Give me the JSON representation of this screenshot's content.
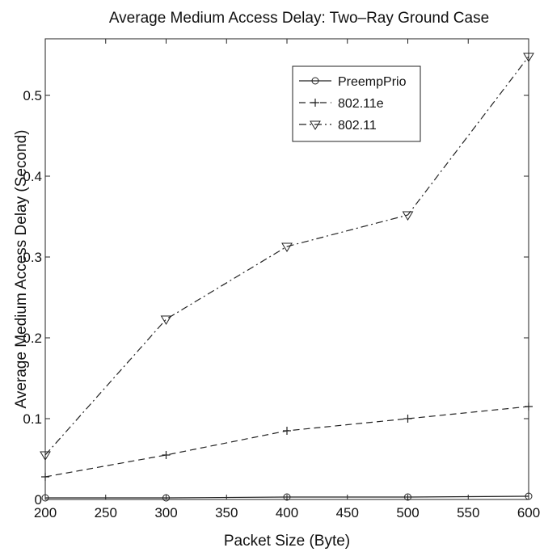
{
  "chart_data": {
    "type": "line",
    "title": "Average Medium Access Delay: Two–Ray Ground Case",
    "xlabel": "Packet Size (Byte)",
    "ylabel": "Average Medium Access Delay (Second)",
    "x": [
      200,
      300,
      400,
      500,
      600
    ],
    "xlim": [
      200,
      600
    ],
    "ylim": [
      0,
      0.57
    ],
    "xticks": [
      "200",
      "250",
      "300",
      "350",
      "400",
      "450",
      "500",
      "550",
      "600"
    ],
    "yticks": [
      "0",
      "0.1",
      "0.2",
      "0.3",
      "0.4",
      "0.5"
    ],
    "grid": false,
    "legend_position": "top-right",
    "series": [
      {
        "name": "PreempPrio",
        "values": [
          0.002,
          0.002,
          0.003,
          0.003,
          0.004
        ],
        "line_style": "solid",
        "marker": "circle"
      },
      {
        "name": "802.11e",
        "values": [
          0.028,
          0.055,
          0.085,
          0.1,
          0.115
        ],
        "line_style": "dashed",
        "marker": "plus"
      },
      {
        "name": "802.11",
        "values": [
          0.055,
          0.223,
          0.313,
          0.352,
          0.548
        ],
        "line_style": "dash-dot",
        "marker": "triangle-down"
      }
    ]
  }
}
